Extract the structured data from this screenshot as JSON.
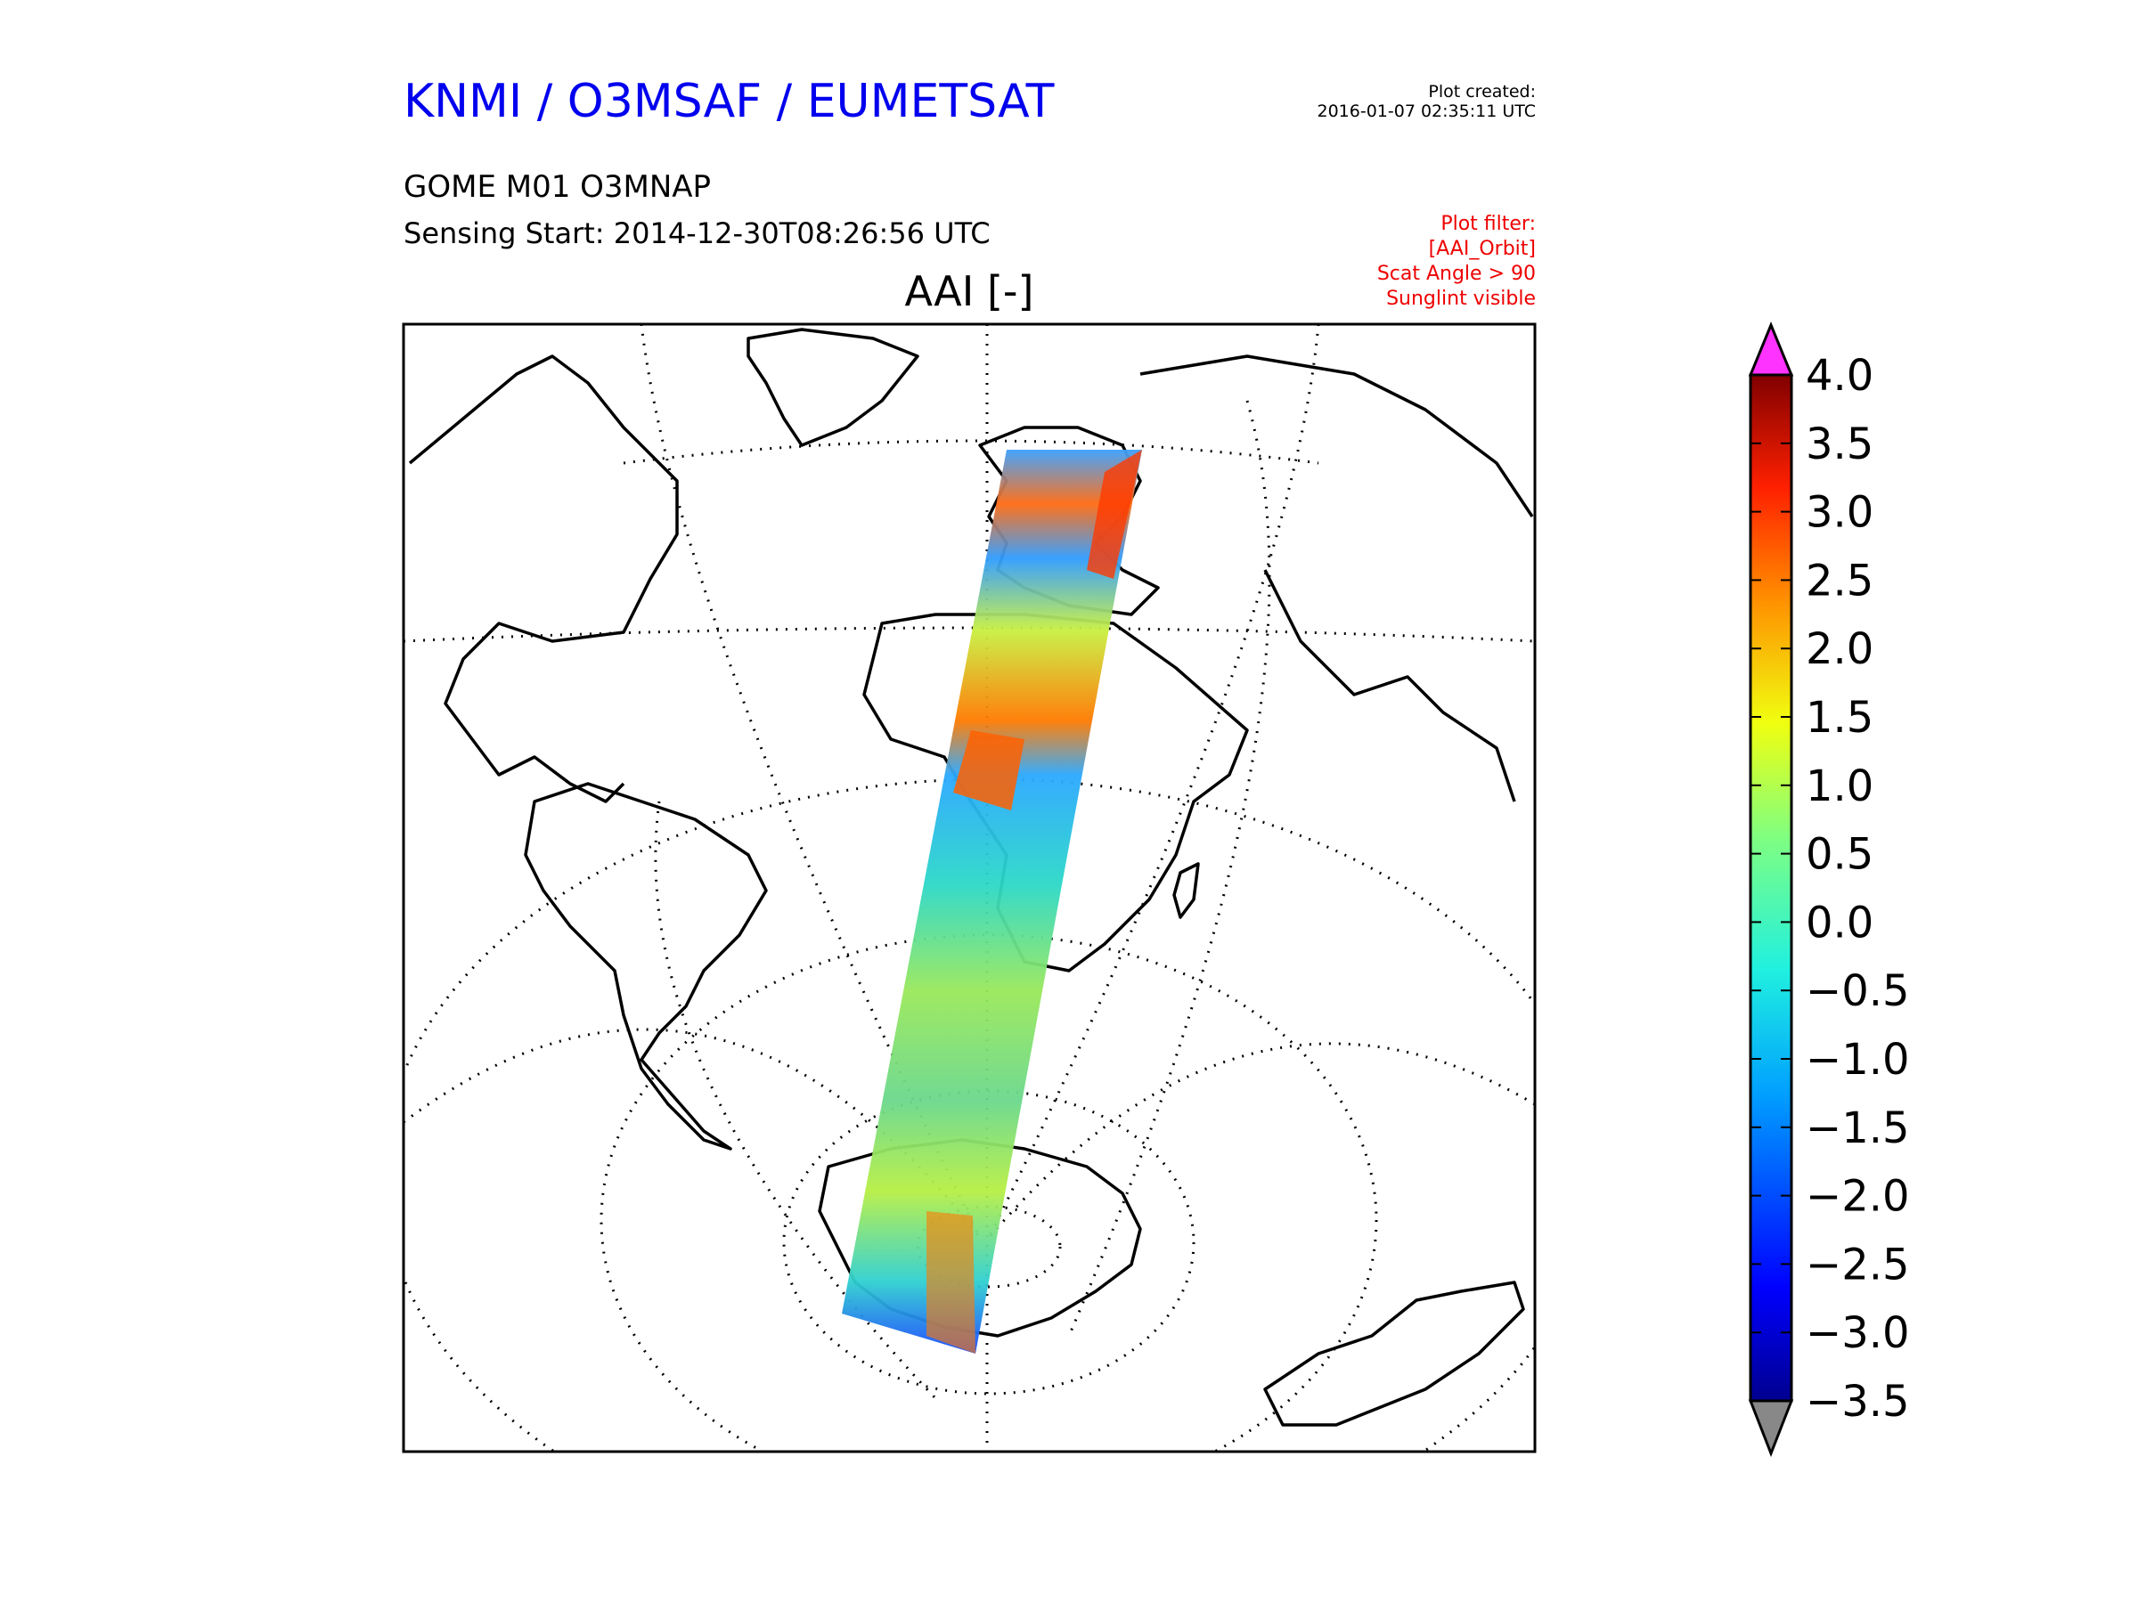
{
  "header": {
    "org_title": "KNMI / O3MSAF / EUMETSAT",
    "plot_created_label": "Plot created:",
    "plot_created_time": "2016-01-07 02:35:11 UTC",
    "product_name": "GOME M01 O3MNAP",
    "sensing_start": "Sensing Start: 2014-12-30T08:26:56 UTC",
    "plot_filter": {
      "label": "Plot filter:",
      "items": [
        "[AAI_Orbit]",
        "Scat Angle > 90",
        "Sunglint visible"
      ]
    }
  },
  "map": {
    "title": "AAI [-]",
    "projection": "orthographic",
    "graticule": "dotted",
    "coastlines": true,
    "swath_colors": {
      "low": "#1f6fff",
      "mid": "#2fd9b0",
      "neutral": "#7fe07f",
      "high": "#ff5a00"
    }
  },
  "colorbar": {
    "ticks": [
      "4.0",
      "3.5",
      "3.0",
      "2.5",
      "2.0",
      "1.5",
      "1.0",
      "0.5",
      "0.0",
      "−0.5",
      "−1.0",
      "−1.5",
      "−2.0",
      "−2.5",
      "−3.0",
      "−3.5"
    ],
    "min": -3.5,
    "max": 4.0,
    "over_color": "#ff33ff",
    "under_color": "#888888",
    "colormap": "jet"
  }
}
